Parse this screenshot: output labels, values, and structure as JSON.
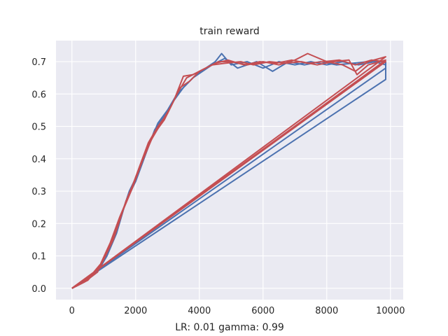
{
  "chart_data": {
    "type": "line",
    "title": "train reward",
    "xlabel": "LR: 0.01 gamma: 0.99",
    "ylabel": "",
    "xlim": [
      -500,
      10400
    ],
    "ylim": [
      -0.035,
      0.765
    ],
    "xticks": [
      0,
      2000,
      4000,
      6000,
      8000,
      10000
    ],
    "yticks": [
      0.0,
      0.1,
      0.2,
      0.3,
      0.4,
      0.5,
      0.6,
      0.7
    ],
    "xtick_labels": [
      "0",
      "2000",
      "4000",
      "6000",
      "8000",
      "10000"
    ],
    "ytick_labels": [
      "0.0",
      "0.1",
      "0.2",
      "0.3",
      "0.4",
      "0.5",
      "0.6",
      "0.7"
    ],
    "grid": true,
    "background": "#eaeaf2",
    "series_colors": [
      "#4c72b0",
      "#c44e52"
    ],
    "series": [
      {
        "color": "#4c72b0",
        "points": [
          [
            0,
            0.0
          ],
          [
            300,
            0.015
          ],
          [
            600,
            0.035
          ],
          [
            900,
            0.07
          ],
          [
            1200,
            0.13
          ],
          [
            1500,
            0.21
          ],
          [
            1800,
            0.3
          ],
          [
            2100,
            0.36
          ],
          [
            2400,
            0.44
          ],
          [
            2700,
            0.51
          ],
          [
            3000,
            0.55
          ],
          [
            3300,
            0.6
          ],
          [
            3600,
            0.63
          ],
          [
            3900,
            0.66
          ],
          [
            4200,
            0.68
          ],
          [
            4500,
            0.7
          ],
          [
            4700,
            0.725
          ],
          [
            5000,
            0.69
          ],
          [
            5500,
            0.7
          ],
          [
            6000,
            0.68
          ],
          [
            6500,
            0.7
          ],
          [
            7000,
            0.69
          ],
          [
            7500,
            0.7
          ],
          [
            8000,
            0.69
          ],
          [
            8500,
            0.7
          ],
          [
            9000,
            0.69
          ],
          [
            9500,
            0.7
          ],
          [
            9850,
            0.69
          ],
          [
            9850,
            0.645
          ],
          [
            0,
            0.0
          ]
        ]
      },
      {
        "color": "#4c72b0",
        "points": [
          [
            0,
            0.0
          ],
          [
            400,
            0.02
          ],
          [
            800,
            0.05
          ],
          [
            1100,
            0.1
          ],
          [
            1400,
            0.17
          ],
          [
            1700,
            0.27
          ],
          [
            2000,
            0.33
          ],
          [
            2300,
            0.41
          ],
          [
            2600,
            0.49
          ],
          [
            2900,
            0.53
          ],
          [
            3200,
            0.58
          ],
          [
            3500,
            0.62
          ],
          [
            3800,
            0.65
          ],
          [
            4100,
            0.67
          ],
          [
            4400,
            0.69
          ],
          [
            4800,
            0.71
          ],
          [
            5200,
            0.68
          ],
          [
            5800,
            0.7
          ],
          [
            6300,
            0.67
          ],
          [
            6800,
            0.7
          ],
          [
            7300,
            0.69
          ],
          [
            7800,
            0.7
          ],
          [
            8300,
            0.69
          ],
          [
            8800,
            0.695
          ],
          [
            9300,
            0.7
          ],
          [
            9850,
            0.7
          ],
          [
            9850,
            0.68
          ],
          [
            0,
            0.0
          ]
        ]
      },
      {
        "color": "#c44e52",
        "points": [
          [
            0,
            0.0
          ],
          [
            300,
            0.015
          ],
          [
            600,
            0.04
          ],
          [
            900,
            0.075
          ],
          [
            1200,
            0.14
          ],
          [
            1500,
            0.22
          ],
          [
            1800,
            0.29
          ],
          [
            2100,
            0.37
          ],
          [
            2400,
            0.45
          ],
          [
            2700,
            0.5
          ],
          [
            3000,
            0.54
          ],
          [
            3300,
            0.6
          ],
          [
            3600,
            0.65
          ],
          [
            3900,
            0.665
          ],
          [
            4200,
            0.68
          ],
          [
            4600,
            0.7
          ],
          [
            5000,
            0.7
          ],
          [
            5500,
            0.69
          ],
          [
            6000,
            0.7
          ],
          [
            6500,
            0.69
          ],
          [
            7000,
            0.705
          ],
          [
            7400,
            0.725
          ],
          [
            8000,
            0.7
          ],
          [
            8500,
            0.69
          ],
          [
            8900,
            0.67
          ],
          [
            9300,
            0.7
          ],
          [
            9850,
            0.715
          ],
          [
            0,
            0.0
          ]
        ]
      },
      {
        "color": "#c44e52",
        "points": [
          [
            0,
            0.0
          ],
          [
            400,
            0.02
          ],
          [
            800,
            0.05
          ],
          [
            1100,
            0.11
          ],
          [
            1400,
            0.18
          ],
          [
            1700,
            0.27
          ],
          [
            2000,
            0.34
          ],
          [
            2300,
            0.42
          ],
          [
            2600,
            0.48
          ],
          [
            2900,
            0.52
          ],
          [
            3200,
            0.58
          ],
          [
            3500,
            0.655
          ],
          [
            3800,
            0.66
          ],
          [
            4100,
            0.675
          ],
          [
            4500,
            0.695
          ],
          [
            4900,
            0.705
          ],
          [
            5400,
            0.69
          ],
          [
            5900,
            0.7
          ],
          [
            6400,
            0.695
          ],
          [
            6900,
            0.705
          ],
          [
            7400,
            0.695
          ],
          [
            7900,
            0.7
          ],
          [
            8400,
            0.705
          ],
          [
            8900,
            0.69
          ],
          [
            9400,
            0.705
          ],
          [
            9850,
            0.7
          ],
          [
            0,
            0.0
          ]
        ]
      },
      {
        "color": "#c44e52",
        "points": [
          [
            0,
            0.0
          ],
          [
            500,
            0.025
          ],
          [
            900,
            0.07
          ],
          [
            1300,
            0.15
          ],
          [
            1600,
            0.24
          ],
          [
            1900,
            0.31
          ],
          [
            2200,
            0.39
          ],
          [
            2500,
            0.46
          ],
          [
            2800,
            0.51
          ],
          [
            3100,
            0.56
          ],
          [
            3400,
            0.62
          ],
          [
            3700,
            0.64
          ],
          [
            4000,
            0.67
          ],
          [
            4400,
            0.69
          ],
          [
            4800,
            0.695
          ],
          [
            5300,
            0.7
          ],
          [
            5700,
            0.69
          ],
          [
            6200,
            0.7
          ],
          [
            6700,
            0.695
          ],
          [
            7200,
            0.7
          ],
          [
            7700,
            0.69
          ],
          [
            8200,
            0.7
          ],
          [
            8700,
            0.705
          ],
          [
            8950,
            0.66
          ],
          [
            9300,
            0.69
          ],
          [
            9850,
            0.705
          ],
          [
            0,
            0.0
          ]
        ]
      }
    ]
  }
}
